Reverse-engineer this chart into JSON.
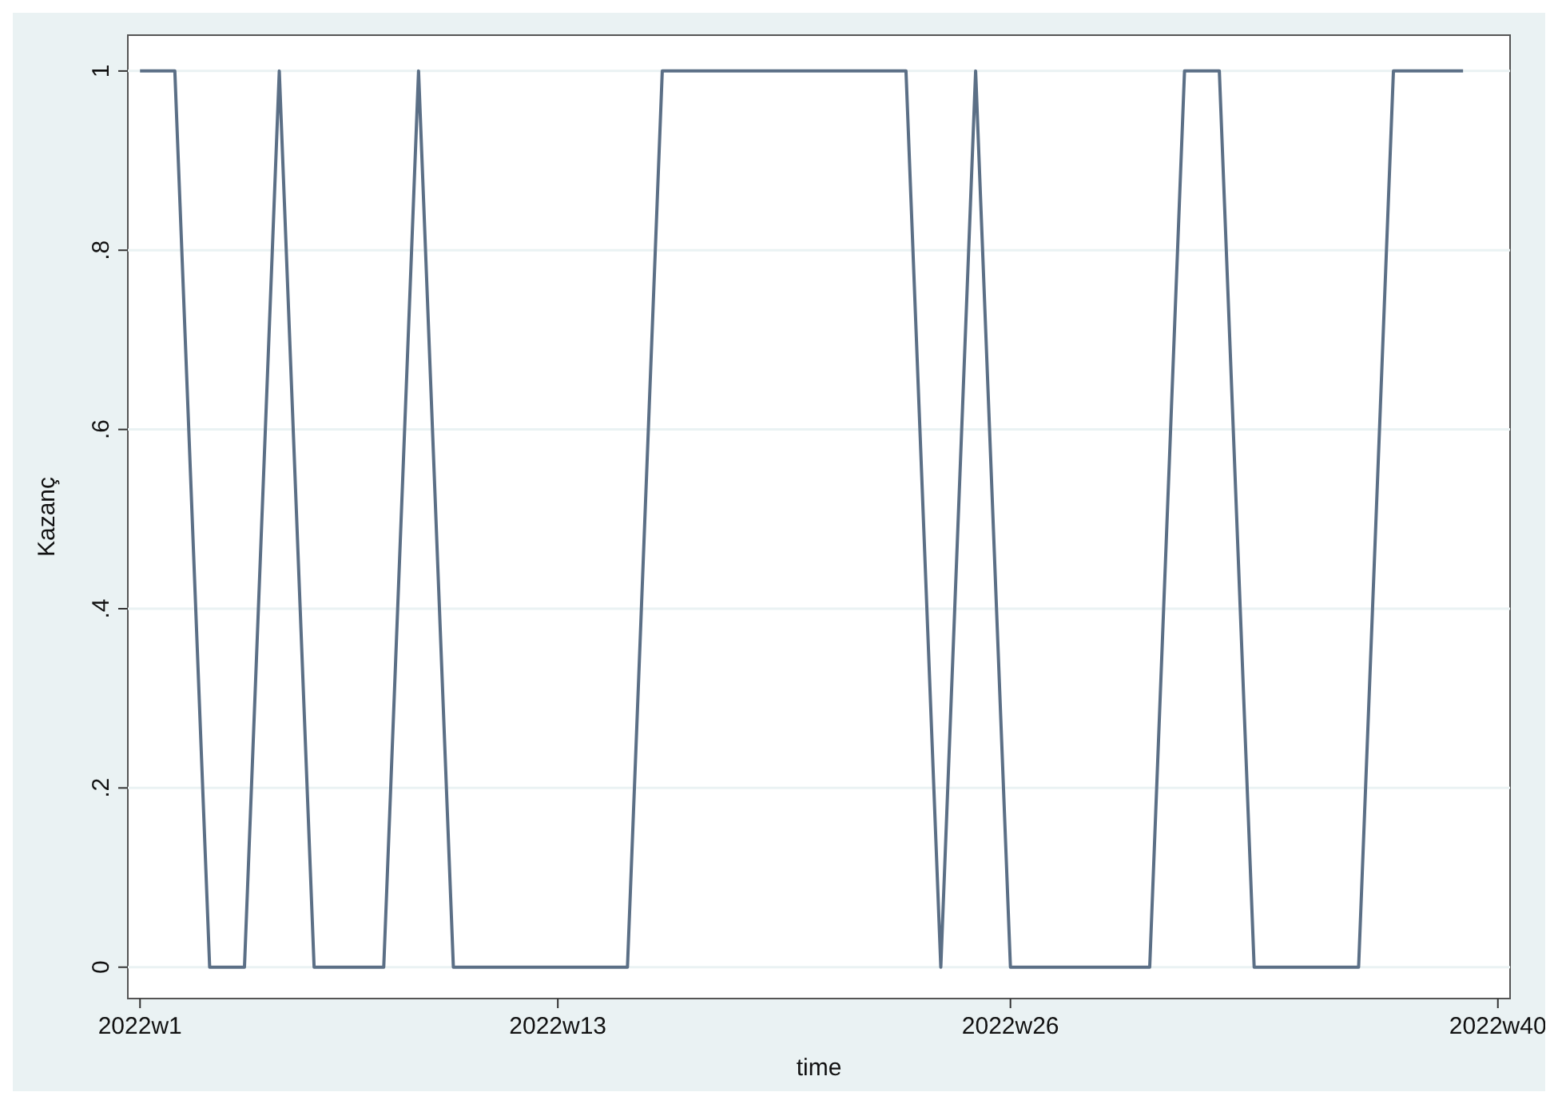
{
  "chart_data": {
    "type": "line",
    "xlabel": "time",
    "ylabel": "Kazanç",
    "categories": [
      "2022w1",
      null,
      null,
      null,
      null,
      null,
      null,
      null,
      null,
      null,
      null,
      null,
      "2022w13",
      null,
      null,
      null,
      null,
      null,
      null,
      null,
      null,
      null,
      null,
      null,
      null,
      "2022w26",
      null,
      null,
      null,
      null,
      null,
      null,
      null,
      null,
      null,
      null,
      null,
      null,
      null,
      "2022w40"
    ],
    "series": [
      {
        "color": "#5b6f86",
        "values": [
          1,
          1,
          0,
          0,
          1,
          0,
          0,
          0,
          1,
          0,
          0,
          0,
          0,
          0,
          0,
          1,
          1,
          1,
          1,
          1,
          1,
          1,
          1,
          0,
          1,
          0,
          0,
          0,
          0,
          0,
          1,
          1,
          0,
          0,
          0,
          0,
          1,
          1,
          1,
          null
        ]
      }
    ],
    "ylim": [
      -0.035,
      1.04
    ],
    "yticks": [
      {
        "value": 0,
        "label": "0"
      },
      {
        "value": 0.2,
        "label": ".2"
      },
      {
        "value": 0.4,
        "label": ".4"
      },
      {
        "value": 0.6,
        "label": ".6"
      },
      {
        "value": 0.8,
        "label": ".8"
      },
      {
        "value": 1,
        "label": "1"
      }
    ],
    "grid": "y",
    "marker": "none",
    "line_style": "solid"
  }
}
